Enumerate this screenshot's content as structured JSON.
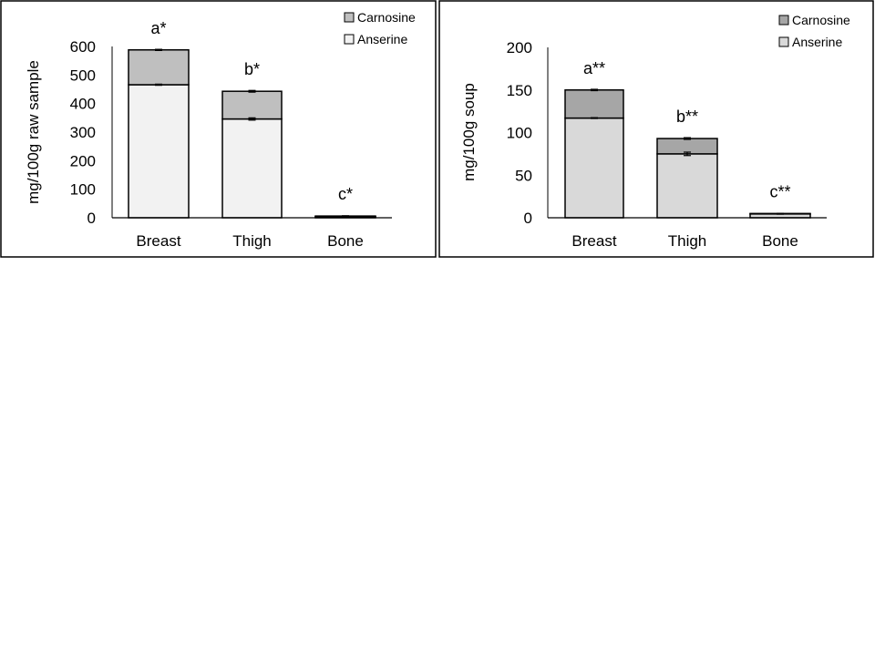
{
  "chart_data": [
    {
      "type": "bar",
      "stacked": true,
      "title": "",
      "xlabel": "",
      "ylabel": "mg/100g raw sample",
      "ylim": [
        0,
        600
      ],
      "yticks": [
        "0",
        "100",
        "200",
        "300",
        "400",
        "500",
        "600"
      ],
      "categories": [
        "Breast",
        "Thigh",
        "Bone"
      ],
      "annotations": [
        "a*",
        "b*",
        "c*"
      ],
      "legend_position": "top-right",
      "series": [
        {
          "name": "Anserine",
          "color": "#f2f2f2",
          "values": [
            466,
            346,
            4
          ],
          "errors": [
            2,
            4,
            1
          ]
        },
        {
          "name": "Carnosine",
          "color": "#bfbfbf",
          "values": [
            122,
            97,
            2
          ],
          "errors": [
            2,
            3,
            1
          ]
        }
      ]
    },
    {
      "type": "bar",
      "stacked": true,
      "title": "",
      "xlabel": "",
      "ylabel": "mg/100g soup",
      "ylim": [
        0,
        200
      ],
      "yticks": [
        "0",
        "50",
        "100",
        "150",
        "200"
      ],
      "categories": [
        "Breast",
        "Thigh",
        "Bone"
      ],
      "annotations": [
        "a**",
        "b**",
        "c**"
      ],
      "legend_position": "top-right",
      "series": [
        {
          "name": "Anserine",
          "color": "#d9d9d9",
          "values": [
            117,
            75,
            4.5
          ],
          "errors": [
            0.5,
            2,
            0.3
          ]
        },
        {
          "name": "Carnosine",
          "color": "#a6a6a6",
          "values": [
            33,
            18,
            0.5
          ],
          "errors": [
            0.8,
            1,
            0.2
          ]
        }
      ]
    }
  ]
}
